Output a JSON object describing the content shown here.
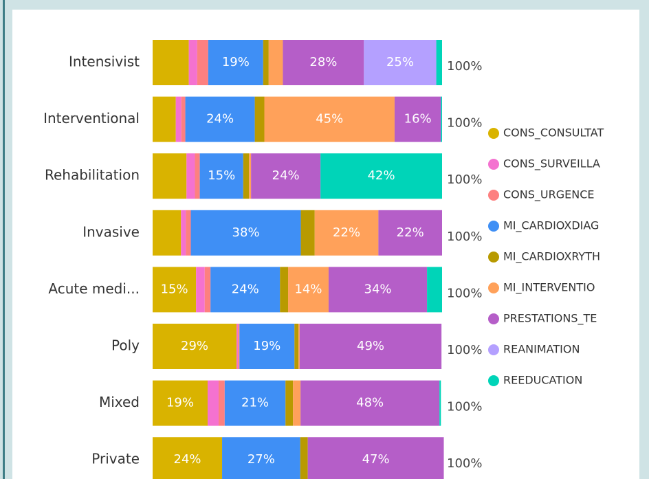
{
  "chart_data": {
    "type": "stacked_bar_horizontal_100",
    "categories": [
      "Intensivist",
      "Interventional",
      "Rehabilitation",
      "Invasive",
      "Acute medi...",
      "Poly",
      "Mixed",
      "Private"
    ],
    "xlim": [
      0,
      100
    ],
    "total_labels": [
      "100%",
      "100%",
      "100%",
      "100%",
      "100%",
      "100%",
      "100%",
      "100%"
    ],
    "series": [
      {
        "name": "CONS_CONSULTAT",
        "color": "#d9b300",
        "values": [
          12.5,
          8,
          11.7,
          9.8,
          15,
          29,
          19,
          24
        ],
        "value_labels": [
          null,
          null,
          null,
          null,
          "15%",
          "29%",
          "19%",
          "24%"
        ]
      },
      {
        "name": "CONS_SURVEILLA",
        "color": "#f472d0",
        "values": [
          2.9,
          1.9,
          2.9,
          1.7,
          3,
          0.5,
          3.8,
          0
        ],
        "value_labels": [
          null,
          null,
          null,
          null,
          null,
          null,
          null,
          null
        ]
      },
      {
        "name": "CONS_URGENCE",
        "color": "#fd8080",
        "values": [
          3.8,
          1.4,
          1.7,
          1.7,
          2,
          0.5,
          2.1,
          0
        ],
        "value_labels": [
          null,
          null,
          null,
          null,
          null,
          null,
          null,
          null
        ]
      },
      {
        "name": "MI_CARDIOXDIAG",
        "color": "#3f8ff5",
        "values": [
          19,
          24,
          15,
          38,
          24,
          19,
          21,
          27
        ],
        "value_labels": [
          "19%",
          "24%",
          "15%",
          "38%",
          "24%",
          "19%",
          "21%",
          "27%"
        ]
      },
      {
        "name": "MI_CARDIOXRYTH",
        "color": "#b89a00",
        "values": [
          1.9,
          3.3,
          2,
          4.8,
          2.8,
          1.4,
          2.6,
          2.6
        ],
        "value_labels": [
          null,
          null,
          null,
          null,
          null,
          null,
          null,
          null
        ]
      },
      {
        "name": "MI_INTERVENTIO",
        "color": "#ffa15a",
        "values": [
          4.9,
          45,
          0.7,
          22,
          14,
          0.4,
          2.6,
          0
        ],
        "value_labels": [
          null,
          "45%",
          null,
          "22%",
          "14%",
          null,
          null,
          null
        ]
      },
      {
        "name": "PRESTATIONS_TE",
        "color": "#b55ec8",
        "values": [
          28,
          16,
          24,
          22,
          34,
          49,
          48,
          47
        ],
        "value_labels": [
          "28%",
          "16%",
          "24%",
          "22%",
          "34%",
          "49%",
          "48%",
          "47%"
        ]
      },
      {
        "name": "REANIMATION",
        "color": "#b4a0ff",
        "values": [
          25,
          0,
          0,
          0,
          0,
          0,
          0,
          0
        ],
        "value_labels": [
          "25%",
          null,
          null,
          null,
          null,
          null,
          null,
          null
        ]
      },
      {
        "name": "REEDUCATION",
        "color": "#00d4b8",
        "values": [
          2,
          0.4,
          42,
          0,
          5.2,
          0,
          0.5,
          0
        ],
        "value_labels": [
          null,
          null,
          "42%",
          null,
          null,
          null,
          null,
          null
        ]
      }
    ]
  }
}
